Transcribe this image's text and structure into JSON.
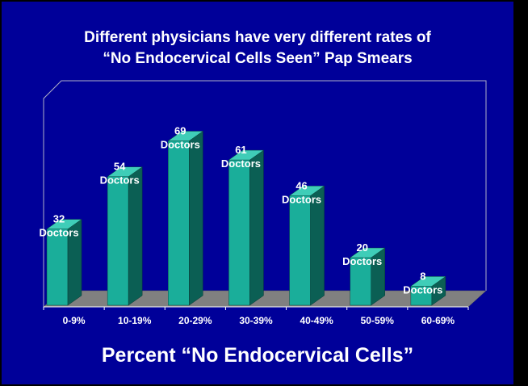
{
  "slide": {
    "title_line1": "Different physicians have very different rates of",
    "title_line2": "“No Endocervical Cells Seen” Pap Smears",
    "x_axis_title": "Percent “No Endocervical Cells”"
  },
  "colors": {
    "background": "#000099",
    "bar_front": "#1aae9a",
    "bar_side": "#0b5f54",
    "bar_top": "#3fcdb8",
    "floor": "#808080",
    "text": "#ffffff"
  },
  "chart_data": {
    "type": "bar",
    "style": "3d",
    "title": "Different physicians have very different rates of “No Endocervical Cells Seen” Pap Smears",
    "xlabel": "Percent “No Endocervical Cells”",
    "ylabel": "",
    "categories": [
      "0-9%",
      "10-19%",
      "20-29%",
      "30-39%",
      "40-49%",
      "50-59%",
      "60-69%"
    ],
    "values": [
      32,
      54,
      69,
      61,
      46,
      20,
      8
    ],
    "value_labels": [
      "32",
      "54",
      "69",
      "61",
      "46",
      "20",
      "8"
    ],
    "unit_label": "Doctors",
    "ylim": [
      0,
      75
    ],
    "grid": false,
    "legend": "none"
  }
}
